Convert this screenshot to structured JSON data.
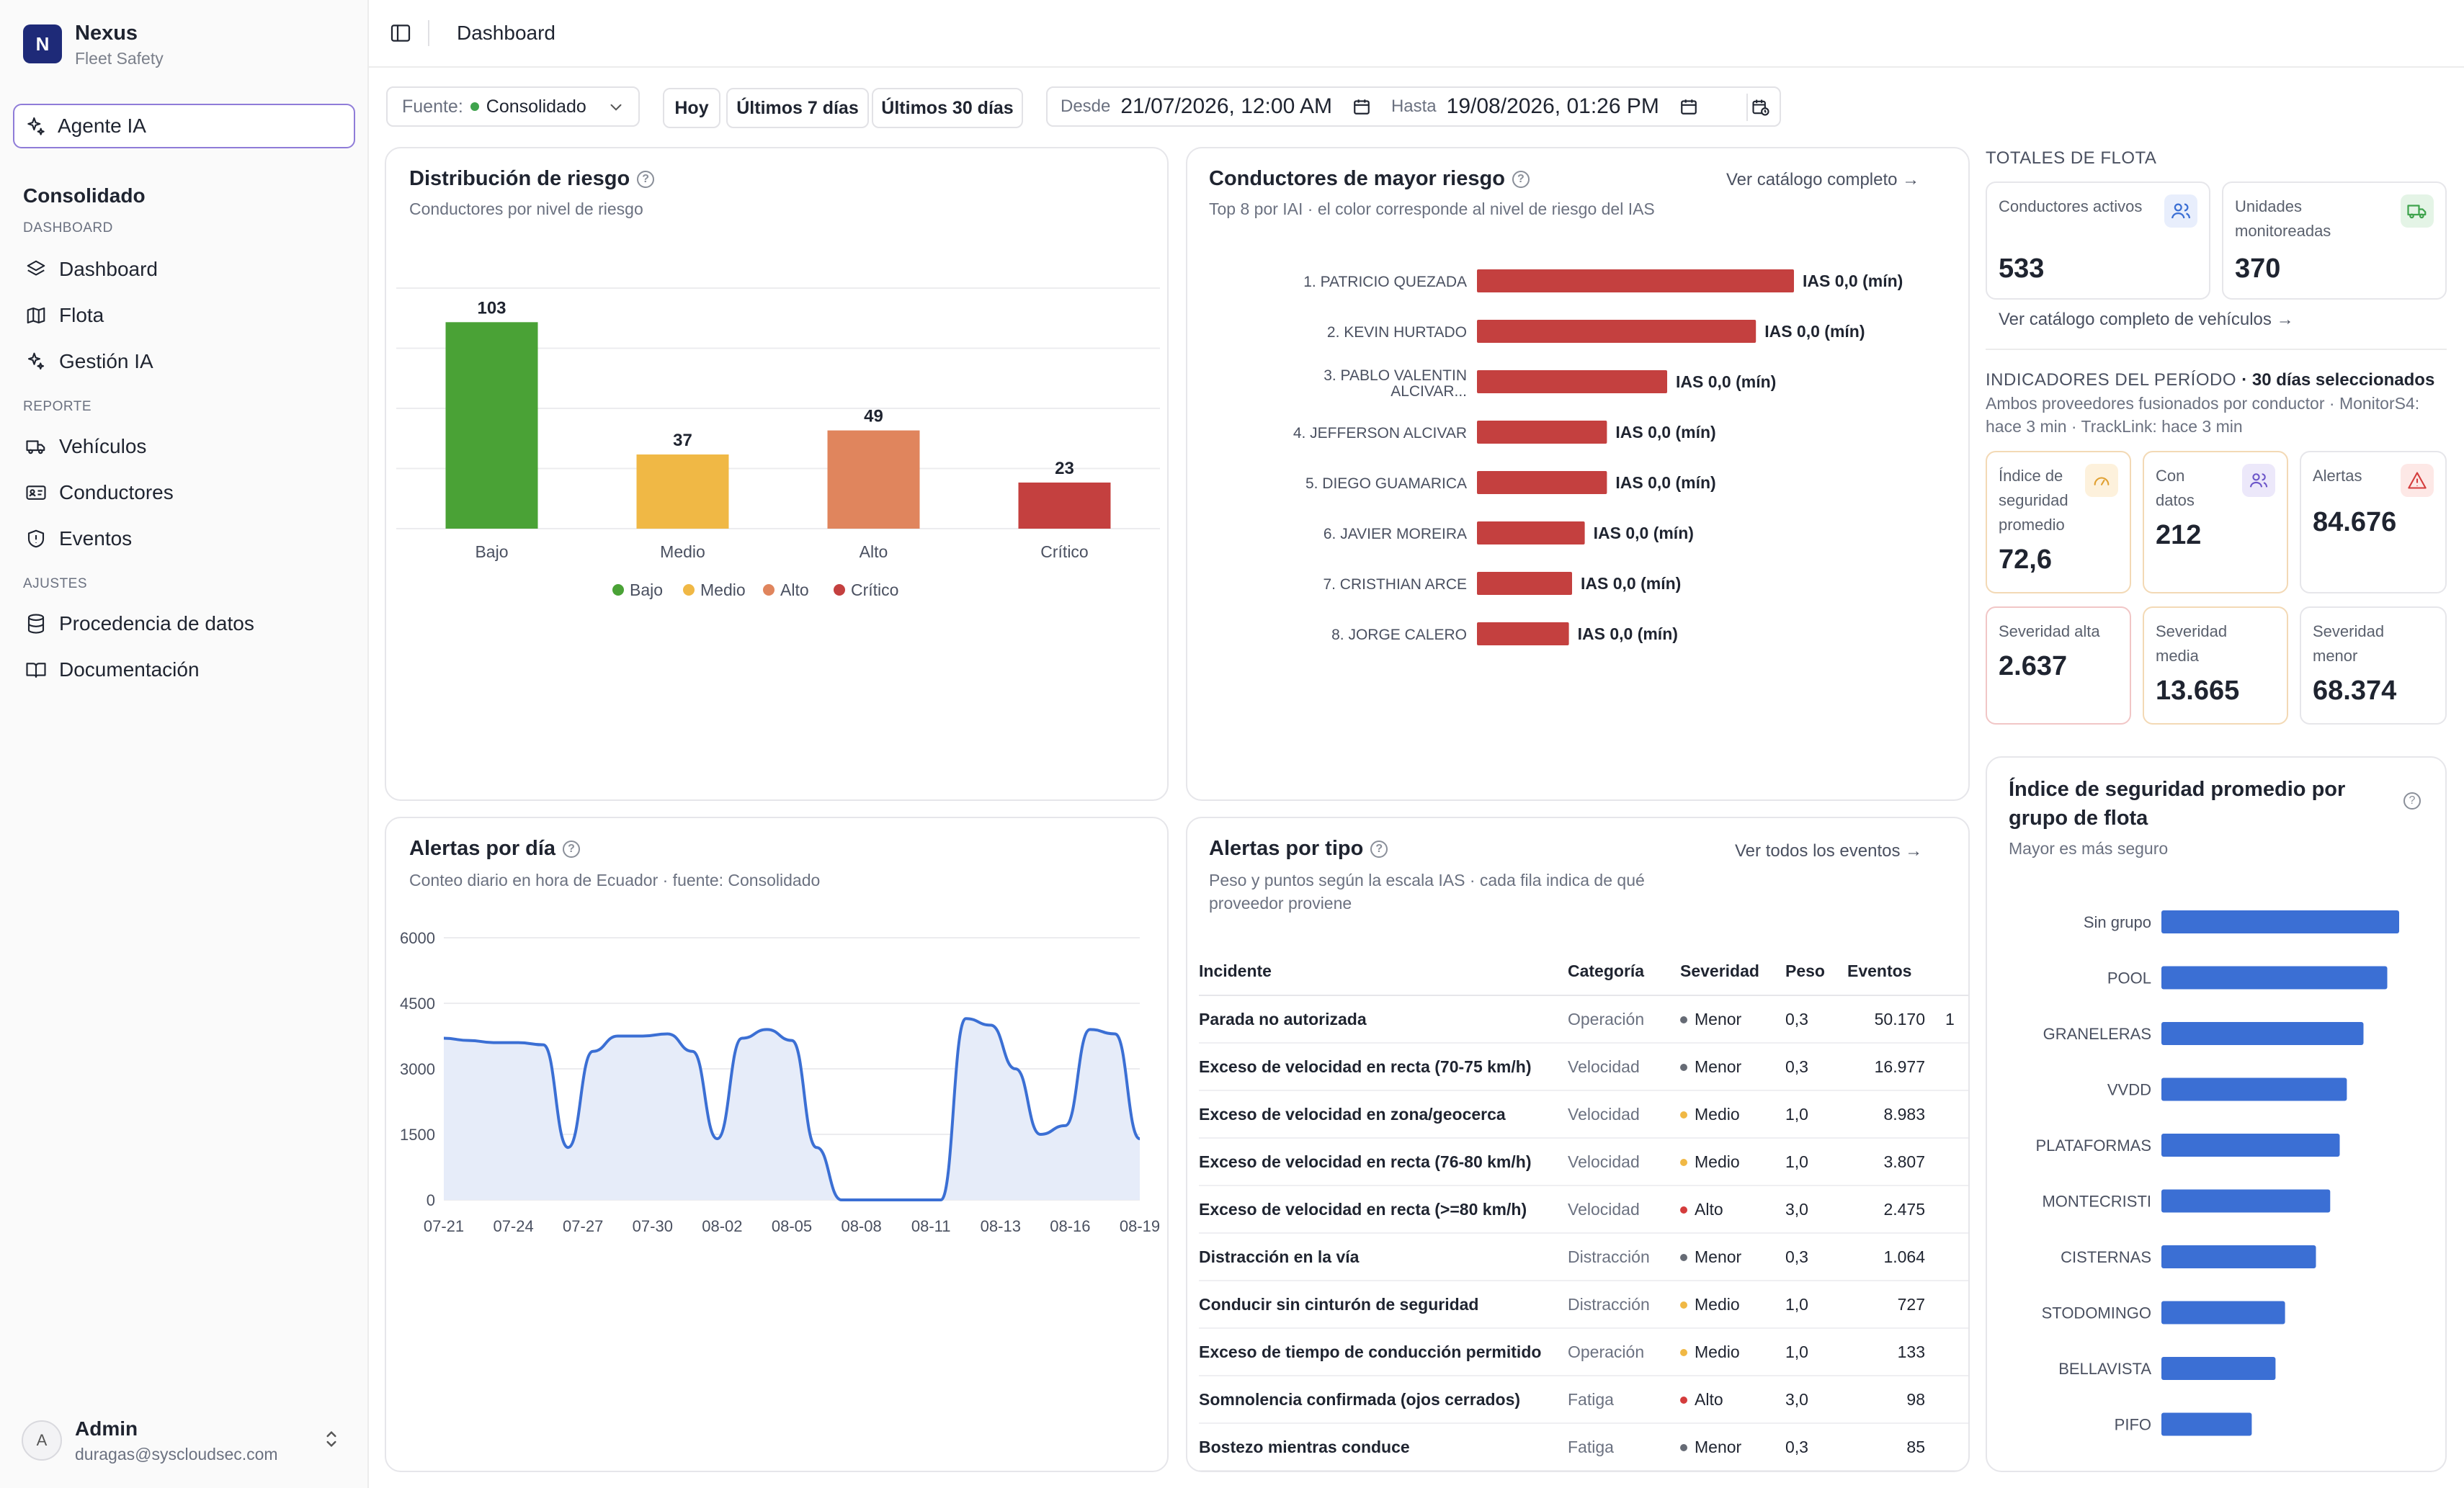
{
  "app": {
    "logo_letter": "N",
    "name": "Nexus",
    "subtitle": "Fleet Safety"
  },
  "agent_button": {
    "label": "Agente IA"
  },
  "sidebar": {
    "title": "Consolidado",
    "sections": [
      {
        "label": "DASHBOARD",
        "items": [
          {
            "label": "Dashboard",
            "icon": "layers-icon"
          },
          {
            "label": "Flota",
            "icon": "map-icon"
          },
          {
            "label": "Gestión IA",
            "icon": "sparkles-icon"
          }
        ]
      },
      {
        "label": "REPORTE",
        "items": [
          {
            "label": "Vehículos",
            "icon": "truck-icon"
          },
          {
            "label": "Conductores",
            "icon": "id-card-icon"
          },
          {
            "label": "Eventos",
            "icon": "shield-icon"
          }
        ]
      },
      {
        "label": "AJUSTES",
        "items": [
          {
            "label": "Procedencia de datos",
            "icon": "database-icon"
          },
          {
            "label": "Documentación",
            "icon": "book-icon"
          }
        ]
      }
    ]
  },
  "user": {
    "initial": "A",
    "name": "Admin",
    "email": "duragas@syscloudsec.com"
  },
  "topbar": {
    "title": "Dashboard"
  },
  "filters": {
    "source_label": "Fuente:",
    "source_value": "Consolidado",
    "buttons": [
      "Hoy",
      "Últimos 7 días",
      "Últimos 30 días"
    ],
    "from_label": "Desde",
    "from_value": "21/07/2026, 12:00 AM",
    "to_label": "Hasta",
    "to_value": "19/08/2026, 01:26 PM"
  },
  "risk_distribution": {
    "title": "Distribución de riesgo",
    "subtitle": "Conductores por nivel de riesgo",
    "chart_data": {
      "type": "bar",
      "categories": [
        "Bajo",
        "Medio",
        "Alto",
        "Crítico"
      ],
      "values": [
        103,
        37,
        49,
        23
      ],
      "colors": [
        "#4aa236",
        "#f0b845",
        "#e0855d",
        "#c4403f"
      ],
      "legend": [
        "Bajo",
        "Medio",
        "Alto",
        "Crítico"
      ],
      "ylim": [
        0,
        120
      ]
    }
  },
  "top_drivers": {
    "title": "Conductores de mayor riesgo",
    "subtitle": "Top 8 por IAI · el color corresponde al nivel de riesgo del IAS",
    "link": "Ver catálogo completo →",
    "chart_data": {
      "type": "bar",
      "orientation": "horizontal",
      "categories": [
        "1. PATRICIO QUEZADA",
        "2. KEVIN HURTADO",
        "3. PABLO VALENTIN ALCIVAR...",
        "4. JEFFERSON ALCIVAR",
        "5. DIEGO GUAMARICA",
        "6. JAVIER MOREIRA",
        "7. CRISTHIAN ARCE",
        "8. JORGE CALERO"
      ],
      "values": [
        100,
        88,
        60,
        41,
        41,
        34,
        30,
        29
      ],
      "value_labels": [
        "IAS 0,0 (mín)",
        "IAS 0,0 (mín)",
        "IAS 0,0 (mín)",
        "IAS 0,0 (mín)",
        "IAS 0,0 (mín)",
        "IAS 0,0 (mín)",
        "IAS 0,0 (mín)",
        "IAS 0,0 (mín)"
      ],
      "color": "#c4403f"
    }
  },
  "fleet_totals": {
    "heading": "TOTALES DE FLOTA",
    "kpis": [
      {
        "label": "Conductores activos",
        "value": "533",
        "icon": "users-icon"
      },
      {
        "label": "Unidades monitoreadas",
        "value": "370",
        "icon": "truck-icon"
      }
    ],
    "link": "Ver catálogo completo de vehículos →"
  },
  "period_indicators": {
    "heading": "INDICADORES DEL PERÍODO",
    "heading_extra": "· 30 días seleccionados",
    "note": "Ambos proveedores fusionados por conductor · MonitorS4: hace 3 min · TrackLink: hace 3 min",
    "kpis": [
      {
        "label": "Índice de seguridad promedio",
        "value": "72,6",
        "icon": "gauge-icon"
      },
      {
        "label": "Con datos",
        "value": "212",
        "icon": "users-icon"
      },
      {
        "label": "Alertas",
        "value": "84.676",
        "icon": "alert-triangle-icon"
      },
      {
        "label": "Severidad alta",
        "value": "2.637"
      },
      {
        "label": "Severidad media",
        "value": "13.665"
      },
      {
        "label": "Severidad menor",
        "value": "68.374"
      }
    ]
  },
  "alerts_per_day": {
    "title": "Alertas por día",
    "subtitle": "Conteo diario en hora de Ecuador · fuente: Consolidado",
    "chart_data": {
      "type": "area",
      "x_tick_labels": [
        "07-21",
        "07-24",
        "07-27",
        "07-30",
        "08-02",
        "08-05",
        "08-08",
        "08-11",
        "08-13",
        "08-16",
        "08-19"
      ],
      "y_tick_labels": [
        "0",
        "1500",
        "3000",
        "4500",
        "6000"
      ],
      "ylim": [
        0,
        6000
      ],
      "series": [
        {
          "values": [
            3700,
            3650,
            3600,
            3600,
            3550,
            1200,
            3400,
            3750,
            3750,
            3800,
            3400,
            1400,
            3700,
            3900,
            3650,
            1200,
            0,
            0,
            0,
            0,
            0,
            4150,
            4000,
            3000,
            1500,
            1700,
            3900,
            3800,
            1400
          ]
        }
      ],
      "color": "#3b6fd4",
      "grid": true
    }
  },
  "alerts_by_type": {
    "title": "Alertas por tipo",
    "subtitle": "Peso y puntos según la escala IAS · cada fila indica de qué proveedor proviene",
    "link": "Ver todos los eventos →",
    "columns": [
      "Incidente",
      "Categoría",
      "Severidad",
      "Peso",
      "Eventos"
    ],
    "rows": [
      {
        "incident": "Parada no autorizada",
        "category": "Operación",
        "severity": "Menor",
        "sev_color": "#666b75",
        "weight": "0,3",
        "events": "50.170",
        "extra": "1"
      },
      {
        "incident": "Exceso de velocidad en recta (70-75 km/h)",
        "category": "Velocidad",
        "severity": "Menor",
        "sev_color": "#666b75",
        "weight": "0,3",
        "events": "16.977",
        "extra": ""
      },
      {
        "incident": "Exceso de velocidad en zona/geocerca",
        "category": "Velocidad",
        "severity": "Medio",
        "sev_color": "#f0b845",
        "weight": "1,0",
        "events": "8.983",
        "extra": ""
      },
      {
        "incident": "Exceso de velocidad en recta (76-80 km/h)",
        "category": "Velocidad",
        "severity": "Medio",
        "sev_color": "#f0b845",
        "weight": "1,0",
        "events": "3.807",
        "extra": ""
      },
      {
        "incident": "Exceso de velocidad en recta (>=80 km/h)",
        "category": "Velocidad",
        "severity": "Alto",
        "sev_color": "#d43c3c",
        "weight": "3,0",
        "events": "2.475",
        "extra": ""
      },
      {
        "incident": "Distracción en la vía",
        "category": "Distracción",
        "severity": "Menor",
        "sev_color": "#666b75",
        "weight": "0,3",
        "events": "1.064",
        "extra": ""
      },
      {
        "incident": "Conducir sin cinturón de seguridad",
        "category": "Distracción",
        "severity": "Medio",
        "sev_color": "#f0b845",
        "weight": "1,0",
        "events": "727",
        "extra": ""
      },
      {
        "incident": "Exceso de tiempo de conducción permitido",
        "category": "Operación",
        "severity": "Medio",
        "sev_color": "#f0b845",
        "weight": "1,0",
        "events": "133",
        "extra": ""
      },
      {
        "incident": "Somnolencia confirmada (ojos cerrados)",
        "category": "Fatiga",
        "severity": "Alto",
        "sev_color": "#d43c3c",
        "weight": "3,0",
        "events": "98",
        "extra": ""
      },
      {
        "incident": "Bostezo mientras conduce",
        "category": "Fatiga",
        "severity": "Menor",
        "sev_color": "#666b75",
        "weight": "0,3",
        "events": "85",
        "extra": ""
      }
    ]
  },
  "fleet_group_index": {
    "title": "Índice de seguridad promedio por grupo de flota",
    "subtitle": "Mayor es más seguro",
    "chart_data": {
      "type": "bar",
      "orientation": "horizontal",
      "categories": [
        "Sin grupo",
        "POOL",
        "GRANELERAS",
        "VVDD",
        "PLATAFORMAS",
        "MONTECRISTI",
        "CISTERNAS",
        "STODOMINGO",
        "BELLAVISTA",
        "PIFO"
      ],
      "values": [
        100,
        95,
        85,
        78,
        75,
        71,
        65,
        52,
        48,
        38
      ],
      "color": "#3b6fd4"
    }
  }
}
